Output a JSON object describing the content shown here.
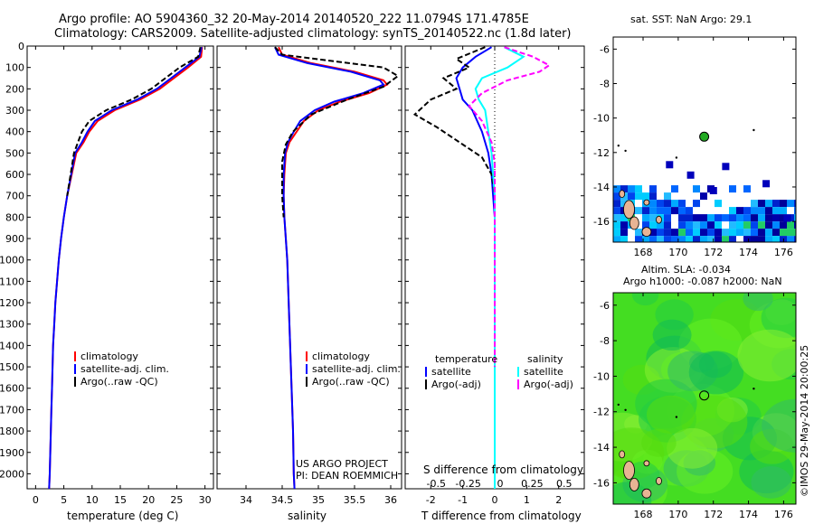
{
  "header": {
    "line1": "Argo profile: AO 5904360_32 20-May-2014 20140520_222 11.0794S 171.4785E",
    "line2": "Climatology: CARS2009. Satellite-adjusted climatology: synTS_20140522.nc (1.8d later)"
  },
  "depth_ticks": [
    0,
    100,
    200,
    300,
    400,
    500,
    600,
    700,
    800,
    900,
    1000,
    1100,
    1200,
    1300,
    1400,
    1500,
    1600,
    1700,
    1800,
    1900,
    2000
  ],
  "colors": {
    "climatology": "#ff0000",
    "satellite": "#0000ff",
    "argo": "#000000",
    "salinity_sat": "#00ffff",
    "salinity_argo": "#ff00ff"
  },
  "chart_data": [
    {
      "id": "temperature",
      "type": "line",
      "xlabel": "temperature (deg C)",
      "xlim": [
        -1.5,
        31.5
      ],
      "ylim": [
        0,
        2070
      ],
      "xticks": [
        0,
        5,
        10,
        15,
        20,
        25,
        30
      ],
      "xtick_labels": [
        "0",
        "5",
        "10",
        "15",
        "20",
        "25",
        "30"
      ],
      "legend": [
        "climatology",
        "satellite-adj. clim.",
        "Argo(..raw -QC)"
      ],
      "series": [
        {
          "name": "climatology",
          "style": "solid",
          "color": "#ff0000",
          "points": [
            [
              29.5,
              5
            ],
            [
              29.3,
              50
            ],
            [
              27,
              100
            ],
            [
              24.5,
              150
            ],
            [
              22,
              200
            ],
            [
              18.5,
              250
            ],
            [
              14,
              300
            ],
            [
              11,
              350
            ],
            [
              9.5,
              400
            ],
            [
              8.5,
              450
            ],
            [
              7.2,
              500
            ],
            [
              6.4,
              600
            ],
            [
              5.6,
              700
            ],
            [
              5,
              800
            ],
            [
              4.5,
              900
            ],
            [
              4.1,
              1000
            ],
            [
              3.8,
              1100
            ],
            [
              3.5,
              1200
            ],
            [
              3.3,
              1300
            ],
            [
              3.1,
              1400
            ],
            [
              3,
              1500
            ],
            [
              2.9,
              1600
            ],
            [
              2.8,
              1700
            ],
            [
              2.7,
              1800
            ],
            [
              2.6,
              1900
            ],
            [
              2.5,
              2000
            ],
            [
              2.4,
              2070
            ]
          ]
        },
        {
          "name": "satellite-adj. clim.",
          "style": "solid",
          "color": "#0000ff",
          "points": [
            [
              29.4,
              5
            ],
            [
              29,
              50
            ],
            [
              26.5,
              100
            ],
            [
              24,
              150
            ],
            [
              21.5,
              200
            ],
            [
              18,
              250
            ],
            [
              13.5,
              300
            ],
            [
              10.5,
              350
            ],
            [
              9.2,
              400
            ],
            [
              8.2,
              450
            ],
            [
              7,
              500
            ],
            [
              6.3,
              600
            ],
            [
              5.6,
              700
            ],
            [
              5,
              800
            ],
            [
              4.5,
              900
            ],
            [
              4.1,
              1000
            ],
            [
              3.8,
              1100
            ],
            [
              3.5,
              1200
            ],
            [
              3.3,
              1300
            ],
            [
              3.1,
              1400
            ],
            [
              3,
              1500
            ],
            [
              2.9,
              1600
            ],
            [
              2.8,
              1700
            ],
            [
              2.7,
              1800
            ],
            [
              2.6,
              1900
            ],
            [
              2.5,
              2000
            ],
            [
              2.4,
              2070
            ]
          ]
        },
        {
          "name": "Argo(..raw -QC)",
          "style": "dashed",
          "color": "#000000",
          "points": [
            [
              29.2,
              5
            ],
            [
              28.8,
              50
            ],
            [
              25.5,
              100
            ],
            [
              23,
              150
            ],
            [
              20.5,
              200
            ],
            [
              17,
              250
            ],
            [
              12.5,
              300
            ],
            [
              9.5,
              350
            ],
            [
              8.2,
              400
            ],
            [
              7.5,
              450
            ],
            [
              6.8,
              500
            ],
            [
              6.2,
              600
            ],
            [
              5.6,
              700
            ]
          ]
        }
      ]
    },
    {
      "id": "salinity",
      "type": "line",
      "xlabel": "salinity",
      "xlim": [
        33.6,
        36.15
      ],
      "ylim": [
        0,
        2070
      ],
      "xticks": [
        34,
        34.5,
        35,
        35.5,
        36
      ],
      "xtick_labels": [
        "34",
        "34.5",
        "35",
        "35.5",
        "36"
      ],
      "legend": [
        "climatology",
        "satellite-adj. clim.",
        "Argo(..raw -QC)"
      ],
      "annotation": [
        "US ARGO PROJECT",
        "PI: DEAN ROEMMICH"
      ],
      "series": [
        {
          "name": "climatology",
          "style": "solid",
          "color": "#ff0000",
          "points": [
            [
              34.45,
              5
            ],
            [
              34.5,
              40
            ],
            [
              34.9,
              80
            ],
            [
              35.5,
              120
            ],
            [
              35.9,
              160
            ],
            [
              35.95,
              180
            ],
            [
              35.7,
              220
            ],
            [
              35.3,
              260
            ],
            [
              35,
              300
            ],
            [
              34.8,
              350
            ],
            [
              34.7,
              400
            ],
            [
              34.6,
              450
            ],
            [
              34.55,
              500
            ],
            [
              34.53,
              600
            ],
            [
              34.52,
              700
            ],
            [
              34.53,
              800
            ],
            [
              34.55,
              900
            ],
            [
              34.57,
              1000
            ],
            [
              34.59,
              1200
            ],
            [
              34.61,
              1400
            ],
            [
              34.63,
              1600
            ],
            [
              34.65,
              1800
            ],
            [
              34.66,
              2000
            ],
            [
              34.67,
              2070
            ]
          ]
        },
        {
          "name": "satellite-adj. clim.",
          "style": "solid",
          "color": "#0000ff",
          "points": [
            [
              34.4,
              5
            ],
            [
              34.45,
              40
            ],
            [
              34.85,
              80
            ],
            [
              35.45,
              120
            ],
            [
              35.85,
              160
            ],
            [
              35.9,
              180
            ],
            [
              35.62,
              220
            ],
            [
              35.22,
              260
            ],
            [
              34.95,
              300
            ],
            [
              34.75,
              350
            ],
            [
              34.66,
              400
            ],
            [
              34.58,
              450
            ],
            [
              34.54,
              500
            ],
            [
              34.52,
              600
            ],
            [
              34.52,
              700
            ],
            [
              34.53,
              800
            ],
            [
              34.55,
              900
            ],
            [
              34.57,
              1000
            ],
            [
              34.59,
              1200
            ],
            [
              34.61,
              1400
            ],
            [
              34.63,
              1600
            ],
            [
              34.65,
              1800
            ],
            [
              34.66,
              2000
            ],
            [
              34.67,
              2070
            ]
          ]
        },
        {
          "name": "Argo(..raw -QC)",
          "style": "dashed",
          "color": "#000000",
          "points": [
            [
              34.4,
              5
            ],
            [
              34.5,
              40
            ],
            [
              35.2,
              70
            ],
            [
              35.9,
              100
            ],
            [
              36.1,
              140
            ],
            [
              35.9,
              190
            ],
            [
              35.4,
              250
            ],
            [
              34.9,
              320
            ],
            [
              34.65,
              400
            ],
            [
              34.55,
              460
            ],
            [
              34.5,
              540
            ],
            [
              34.5,
              620
            ],
            [
              34.5,
              700
            ],
            [
              34.52,
              800
            ]
          ]
        }
      ]
    },
    {
      "id": "difference",
      "type": "line",
      "xlabel": "T difference from climatology",
      "xlabel_top": "S difference from climatology",
      "xlim": [
        -2.8,
        2.8
      ],
      "ylim": [
        0,
        2070
      ],
      "xticks": [
        -2,
        -1,
        0,
        1,
        2
      ],
      "xtick_labels": [
        "-2",
        "-1",
        "0",
        "1",
        "2"
      ],
      "top_tick_labels": [
        "-0.5",
        "-0.25",
        "0",
        "0.25",
        "0.5"
      ],
      "legend_headers": [
        "temperature",
        "salinity"
      ],
      "legend": [
        "satellite",
        "Argo(-adj)",
        "satellite",
        "Argo(-adj)"
      ],
      "series": [
        {
          "name": "temperature satellite",
          "style": "solid",
          "color": "#0000ff",
          "points": [
            [
              -0.1,
              5
            ],
            [
              -0.6,
              50
            ],
            [
              -1.0,
              100
            ],
            [
              -1.2,
              150
            ],
            [
              -1.1,
              200
            ],
            [
              -1.0,
              250
            ],
            [
              -0.7,
              300
            ],
            [
              -0.4,
              400
            ],
            [
              -0.2,
              500
            ],
            [
              -0.1,
              600
            ],
            [
              -0.05,
              700
            ],
            [
              0,
              800
            ],
            [
              0,
              1000
            ],
            [
              0,
              1500
            ],
            [
              0,
              2070
            ]
          ]
        },
        {
          "name": "temperature Argo(-adj)",
          "style": "dashed",
          "color": "#000000",
          "points": [
            [
              -0.3,
              5
            ],
            [
              -1.2,
              60
            ],
            [
              -0.8,
              100
            ],
            [
              -1.6,
              150
            ],
            [
              -1.2,
              200
            ],
            [
              -2.0,
              250
            ],
            [
              -2.5,
              320
            ],
            [
              -1.8,
              380
            ],
            [
              -1.2,
              440
            ],
            [
              -0.8,
              480
            ],
            [
              -0.4,
              520
            ],
            [
              -0.1,
              600
            ],
            [
              0,
              700
            ]
          ]
        },
        {
          "name": "salinity satellite",
          "style": "solid",
          "color": "#00ffff",
          "points": [
            [
              0.3,
              5
            ],
            [
              0.9,
              50
            ],
            [
              0.4,
              100
            ],
            [
              -0.4,
              150
            ],
            [
              -0.6,
              200
            ],
            [
              -0.5,
              250
            ],
            [
              -0.3,
              300
            ],
            [
              -0.2,
              400
            ],
            [
              -0.1,
              500
            ],
            [
              -0.05,
              600
            ],
            [
              0,
              700
            ],
            [
              0,
              1000
            ],
            [
              0,
              1500
            ],
            [
              0,
              2070
            ]
          ]
        },
        {
          "name": "salinity Argo(-adj)",
          "style": "dashed",
          "color": "#ff00ff",
          "points": [
            [
              0.3,
              5
            ],
            [
              1.2,
              50
            ],
            [
              1.7,
              90
            ],
            [
              1.4,
              120
            ],
            [
              0.4,
              160
            ],
            [
              -0.4,
              220
            ],
            [
              -0.8,
              280
            ],
            [
              -0.4,
              350
            ],
            [
              -0.1,
              450
            ],
            [
              0,
              550
            ],
            [
              0,
              1300
            ],
            [
              0,
              1500
            ]
          ]
        }
      ]
    },
    {
      "id": "sst-map",
      "type": "heatmap",
      "title": "sat. SST: NaN Argo: 29.1",
      "xlim": [
        166.3,
        176.7
      ],
      "ylim": [
        -17.2,
        -5.3
      ],
      "xticks": [
        168,
        170,
        172,
        174,
        176
      ],
      "yticks": [
        -6,
        -8,
        -10,
        -12,
        -14,
        -16
      ],
      "xtick_labels": [
        "168",
        "170",
        "172",
        "174",
        "176"
      ],
      "ytick_labels": [
        "-6",
        "-8",
        "-10",
        "-12",
        "-14",
        "-16"
      ],
      "argo_position": [
        171.48,
        -11.08
      ],
      "argo_marker_color": "#22aa22"
    },
    {
      "id": "sla-map",
      "type": "heatmap",
      "title": "Altim. SLA: -0.034",
      "title2": "Argo h1000: -0.087 h2000: NaN",
      "xlim": [
        166.3,
        176.7
      ],
      "ylim": [
        -17.2,
        -5.3
      ],
      "xticks": [
        168,
        170,
        172,
        174,
        176
      ],
      "yticks": [
        -6,
        -8,
        -10,
        -12,
        -14,
        -16
      ],
      "xtick_labels": [
        "168",
        "170",
        "172",
        "174",
        "176"
      ],
      "ytick_labels": [
        "-6",
        "-8",
        "-10",
        "-12",
        "-14",
        "-16"
      ],
      "argo_position": [
        171.48,
        -11.08
      ]
    }
  ],
  "side_label": "©IMOS 29-May-2014 20:00:25"
}
